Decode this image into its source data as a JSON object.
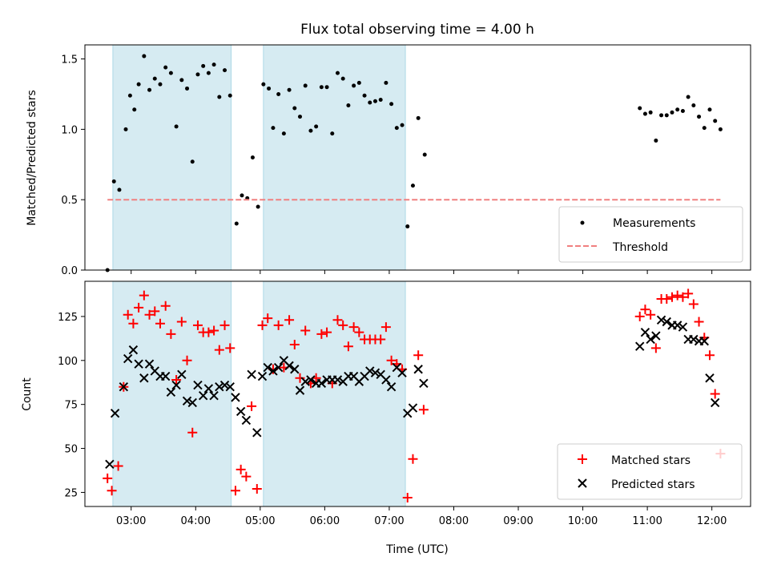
{
  "chart_data": [
    {
      "type": "scatter",
      "title": "Flux total observing time = 4.00 h",
      "xlabel": "",
      "ylabel": "Matched/Predicted stars",
      "xlim": [
        "02:17",
        "12:36"
      ],
      "ylim": [
        0,
        1.6
      ],
      "y_ticks": [
        "0.0",
        "0.5",
        "1.0",
        "1.5"
      ],
      "grid": false,
      "legend_position": "lower-right",
      "shaded_intervals": [
        [
          "02:43",
          "04:33"
        ],
        [
          "05:03",
          "07:15"
        ]
      ],
      "colors": {
        "measurements": "#000000",
        "threshold": "#f08080",
        "shade": "#add8e6"
      },
      "series": [
        {
          "name": "Measurements",
          "marker": "dot",
          "points": [
            [
              "02:38",
              0.0
            ],
            [
              "02:44",
              0.63
            ],
            [
              "02:49",
              0.57
            ],
            [
              "02:55",
              1.0
            ],
            [
              "02:59",
              1.24
            ],
            [
              "03:03",
              1.14
            ],
            [
              "03:07",
              1.32
            ],
            [
              "03:12",
              1.52
            ],
            [
              "03:17",
              1.28
            ],
            [
              "03:22",
              1.36
            ],
            [
              "03:27",
              1.32
            ],
            [
              "03:32",
              1.44
            ],
            [
              "03:37",
              1.4
            ],
            [
              "03:42",
              1.02
            ],
            [
              "03:47",
              1.35
            ],
            [
              "03:52",
              1.29
            ],
            [
              "03:57",
              0.77
            ],
            [
              "04:02",
              1.39
            ],
            [
              "04:07",
              1.45
            ],
            [
              "04:12",
              1.4
            ],
            [
              "04:17",
              1.46
            ],
            [
              "04:22",
              1.23
            ],
            [
              "04:27",
              1.42
            ],
            [
              "04:32",
              1.24
            ],
            [
              "04:38",
              0.33
            ],
            [
              "04:43",
              0.53
            ],
            [
              "04:48",
              0.51
            ],
            [
              "04:53",
              0.8
            ],
            [
              "04:58",
              0.45
            ],
            [
              "05:03",
              1.32
            ],
            [
              "05:08",
              1.29
            ],
            [
              "05:12",
              1.01
            ],
            [
              "05:17",
              1.25
            ],
            [
              "05:22",
              0.97
            ],
            [
              "05:27",
              1.28
            ],
            [
              "05:32",
              1.15
            ],
            [
              "05:37",
              1.09
            ],
            [
              "05:42",
              1.31
            ],
            [
              "05:47",
              0.99
            ],
            [
              "05:52",
              1.02
            ],
            [
              "05:57",
              1.3
            ],
            [
              "06:02",
              1.3
            ],
            [
              "06:07",
              0.97
            ],
            [
              "06:12",
              1.4
            ],
            [
              "06:17",
              1.36
            ],
            [
              "06:22",
              1.17
            ],
            [
              "06:27",
              1.31
            ],
            [
              "06:32",
              1.33
            ],
            [
              "06:37",
              1.24
            ],
            [
              "06:42",
              1.19
            ],
            [
              "06:47",
              1.2
            ],
            [
              "06:52",
              1.21
            ],
            [
              "06:57",
              1.33
            ],
            [
              "07:02",
              1.18
            ],
            [
              "07:07",
              1.01
            ],
            [
              "07:12",
              1.03
            ],
            [
              "07:17",
              0.31
            ],
            [
              "07:22",
              0.6
            ],
            [
              "07:27",
              1.08
            ],
            [
              "07:33",
              0.82
            ],
            [
              "10:53",
              1.15
            ],
            [
              "10:58",
              1.11
            ],
            [
              "11:03",
              1.12
            ],
            [
              "11:08",
              0.92
            ],
            [
              "11:13",
              1.1
            ],
            [
              "11:18",
              1.1
            ],
            [
              "11:23",
              1.12
            ],
            [
              "11:28",
              1.14
            ],
            [
              "11:33",
              1.13
            ],
            [
              "11:38",
              1.23
            ],
            [
              "11:43",
              1.17
            ],
            [
              "11:48",
              1.09
            ],
            [
              "11:53",
              1.01
            ],
            [
              "11:58",
              1.14
            ],
            [
              "12:03",
              1.06
            ],
            [
              "12:08",
              1.0
            ]
          ]
        },
        {
          "name": "Threshold",
          "style": "dashed-line",
          "points": [
            [
              "02:38",
              0.5
            ],
            [
              "12:08",
              0.5
            ]
          ]
        }
      ]
    },
    {
      "type": "scatter",
      "title": "",
      "xlabel": "Time (UTC)",
      "ylabel": "Count",
      "xlim": [
        "02:17",
        "12:36"
      ],
      "ylim": [
        17,
        145
      ],
      "y_ticks": [
        "25",
        "50",
        "75",
        "100",
        "125"
      ],
      "x_ticks": [
        "03:00",
        "04:00",
        "05:00",
        "06:00",
        "07:00",
        "08:00",
        "09:00",
        "10:00",
        "11:00",
        "12:00"
      ],
      "grid": false,
      "legend_position": "lower-right",
      "shaded_intervals": [
        [
          "02:43",
          "04:33"
        ],
        [
          "05:03",
          "07:15"
        ]
      ],
      "colors": {
        "matched": "#ff0000",
        "predicted": "#000000",
        "shade": "#add8e6"
      },
      "series": [
        {
          "name": "Matched stars",
          "marker": "plus",
          "points": [
            [
              "02:38",
              33
            ],
            [
              "02:42",
              26
            ],
            [
              "02:48",
              40
            ],
            [
              "02:53",
              85
            ],
            [
              "02:57",
              126
            ],
            [
              "03:02",
              121
            ],
            [
              "03:07",
              130
            ],
            [
              "03:12",
              137
            ],
            [
              "03:17",
              126
            ],
            [
              "03:22",
              128
            ],
            [
              "03:27",
              121
            ],
            [
              "03:32",
              131
            ],
            [
              "03:37",
              115
            ],
            [
              "03:42",
              89
            ],
            [
              "03:47",
              122
            ],
            [
              "03:52",
              100
            ],
            [
              "03:57",
              59
            ],
            [
              "04:02",
              120
            ],
            [
              "04:07",
              116
            ],
            [
              "04:12",
              116
            ],
            [
              "04:17",
              117
            ],
            [
              "04:22",
              106
            ],
            [
              "04:27",
              120
            ],
            [
              "04:32",
              107
            ],
            [
              "04:37",
              26
            ],
            [
              "04:42",
              38
            ],
            [
              "04:47",
              34
            ],
            [
              "04:52",
              74
            ],
            [
              "04:57",
              27
            ],
            [
              "05:02",
              120
            ],
            [
              "05:07",
              124
            ],
            [
              "05:12",
              95
            ],
            [
              "05:17",
              120
            ],
            [
              "05:22",
              96
            ],
            [
              "05:27",
              123
            ],
            [
              "05:32",
              109
            ],
            [
              "05:37",
              90
            ],
            [
              "05:42",
              117
            ],
            [
              "05:47",
              87
            ],
            [
              "05:52",
              90
            ],
            [
              "05:57",
              115
            ],
            [
              "06:02",
              116
            ],
            [
              "06:07",
              87
            ],
            [
              "06:12",
              123
            ],
            [
              "06:17",
              120
            ],
            [
              "06:22",
              108
            ],
            [
              "06:27",
              119
            ],
            [
              "06:32",
              116
            ],
            [
              "06:37",
              112
            ],
            [
              "06:42",
              112
            ],
            [
              "06:47",
              112
            ],
            [
              "06:52",
              112
            ],
            [
              "06:57",
              119
            ],
            [
              "07:02",
              100
            ],
            [
              "07:07",
              98
            ],
            [
              "07:12",
              95
            ],
            [
              "07:17",
              22
            ],
            [
              "07:22",
              44
            ],
            [
              "07:27",
              103
            ],
            [
              "07:32",
              72
            ],
            [
              "10:53",
              125
            ],
            [
              "10:58",
              129
            ],
            [
              "11:03",
              126
            ],
            [
              "11:08",
              107
            ],
            [
              "11:13",
              135
            ],
            [
              "11:18",
              135
            ],
            [
              "11:23",
              136
            ],
            [
              "11:28",
              137
            ],
            [
              "11:33",
              136
            ],
            [
              "11:38",
              138
            ],
            [
              "11:43",
              132
            ],
            [
              "11:48",
              122
            ],
            [
              "11:53",
              113
            ],
            [
              "11:58",
              103
            ],
            [
              "12:03",
              81
            ],
            [
              "12:08",
              47
            ]
          ]
        },
        {
          "name": "Predicted stars",
          "marker": "x",
          "points": [
            [
              "02:40",
              41
            ],
            [
              "02:45",
              70
            ],
            [
              "02:53",
              85
            ],
            [
              "02:57",
              101
            ],
            [
              "03:02",
              106
            ],
            [
              "03:07",
              98
            ],
            [
              "03:12",
              90
            ],
            [
              "03:17",
              98
            ],
            [
              "03:22",
              94
            ],
            [
              "03:27",
              91
            ],
            [
              "03:32",
              91
            ],
            [
              "03:37",
              82
            ],
            [
              "03:42",
              86
            ],
            [
              "03:47",
              92
            ],
            [
              "03:52",
              77
            ],
            [
              "03:57",
              76
            ],
            [
              "04:02",
              86
            ],
            [
              "04:07",
              80
            ],
            [
              "04:12",
              84
            ],
            [
              "04:17",
              80
            ],
            [
              "04:22",
              85
            ],
            [
              "04:27",
              86
            ],
            [
              "04:32",
              85
            ],
            [
              "04:37",
              79
            ],
            [
              "04:42",
              71
            ],
            [
              "04:47",
              66
            ],
            [
              "04:52",
              92
            ],
            [
              "04:57",
              59
            ],
            [
              "05:02",
              91
            ],
            [
              "05:07",
              96
            ],
            [
              "05:12",
              94
            ],
            [
              "05:17",
              96
            ],
            [
              "05:22",
              100
            ],
            [
              "05:27",
              97
            ],
            [
              "05:32",
              95
            ],
            [
              "05:37",
              83
            ],
            [
              "05:42",
              88
            ],
            [
              "05:47",
              89
            ],
            [
              "05:52",
              87
            ],
            [
              "05:57",
              87
            ],
            [
              "06:02",
              89
            ],
            [
              "06:07",
              89
            ],
            [
              "06:12",
              89
            ],
            [
              "06:17",
              88
            ],
            [
              "06:22",
              91
            ],
            [
              "06:27",
              91
            ],
            [
              "06:32",
              88
            ],
            [
              "06:37",
              91
            ],
            [
              "06:42",
              94
            ],
            [
              "06:47",
              93
            ],
            [
              "06:52",
              92
            ],
            [
              "06:57",
              89
            ],
            [
              "07:02",
              85
            ],
            [
              "07:07",
              96
            ],
            [
              "07:12",
              93
            ],
            [
              "07:17",
              70
            ],
            [
              "07:22",
              73
            ],
            [
              "07:27",
              95
            ],
            [
              "07:32",
              87
            ],
            [
              "10:53",
              108
            ],
            [
              "10:58",
              116
            ],
            [
              "11:03",
              112
            ],
            [
              "11:08",
              114
            ],
            [
              "11:13",
              123
            ],
            [
              "11:18",
              122
            ],
            [
              "11:23",
              120
            ],
            [
              "11:28",
              120
            ],
            [
              "11:33",
              119
            ],
            [
              "11:38",
              112
            ],
            [
              "11:43",
              112
            ],
            [
              "11:48",
              111
            ],
            [
              "11:53",
              111
            ],
            [
              "11:58",
              90
            ],
            [
              "12:03",
              76
            ]
          ]
        }
      ]
    }
  ]
}
